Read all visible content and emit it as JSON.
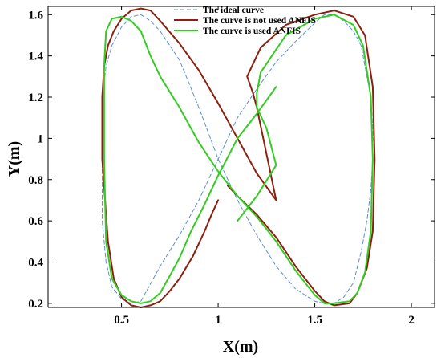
{
  "chart_data": {
    "type": "line",
    "xlabel": "X(m)",
    "ylabel": "Y(m)",
    "xlim": [
      0.12,
      2.12
    ],
    "ylim": [
      0.18,
      1.64
    ],
    "xticks": [
      0.5,
      1,
      1.5,
      2
    ],
    "xtick_labels": [
      "0.5",
      "1",
      "1.5",
      "2"
    ],
    "yticks": [
      0.2,
      0.4,
      0.6,
      0.8,
      1.0,
      1.2,
      1.4,
      1.6
    ],
    "ytick_labels": [
      "0.2",
      "0.4",
      "0.6",
      "0.8",
      "1",
      "1.2",
      "1.4",
      "1.6"
    ],
    "grid": false,
    "legend_position": "top-center",
    "series": [
      {
        "name": "The ideal curve",
        "color": "#5b8fd1",
        "style": "dashed",
        "x": [
          1.0,
          1.1,
          1.2,
          1.3,
          1.4,
          1.5,
          1.55,
          1.6,
          1.65,
          1.7,
          1.74,
          1.77,
          1.79,
          1.8,
          1.8,
          1.79,
          1.77,
          1.74,
          1.7,
          1.65,
          1.6,
          1.55,
          1.5,
          1.4,
          1.3,
          1.2,
          1.1,
          1.0,
          0.9,
          0.8,
          0.7,
          0.6,
          0.55,
          0.5,
          0.45,
          0.42,
          0.4,
          0.4,
          0.4,
          0.42,
          0.45,
          0.5,
          0.55,
          0.6,
          0.65,
          0.7,
          0.8,
          0.9,
          1.0
        ],
        "y": [
          0.9,
          0.7,
          0.53,
          0.38,
          0.27,
          0.21,
          0.2,
          0.2,
          0.23,
          0.3,
          0.45,
          0.6,
          0.75,
          0.9,
          1.05,
          1.2,
          1.3,
          1.45,
          1.52,
          1.57,
          1.6,
          1.6,
          1.56,
          1.47,
          1.37,
          1.24,
          1.1,
          0.9,
          0.7,
          0.53,
          0.38,
          0.21,
          0.2,
          0.22,
          0.28,
          0.4,
          0.6,
          0.9,
          1.2,
          1.35,
          1.45,
          1.54,
          1.59,
          1.6,
          1.57,
          1.52,
          1.38,
          1.15,
          0.9
        ]
      },
      {
        "name": "The curve is not used ANFIS",
        "color": "#8b2010",
        "style": "solid",
        "x": [
          1.0,
          0.97,
          0.93,
          0.87,
          0.8,
          0.75,
          0.7,
          0.65,
          0.6,
          0.55,
          0.5,
          0.46,
          0.43,
          0.4,
          0.4,
          0.41,
          0.43,
          0.46,
          0.5,
          0.55,
          0.6,
          0.65,
          0.7,
          0.8,
          0.9,
          1.0,
          1.1,
          1.2,
          1.3,
          1.2,
          1.18,
          1.15,
          1.22,
          1.35,
          1.5,
          1.6,
          1.7,
          1.76,
          1.8,
          1.81,
          1.8,
          1.77,
          1.72,
          1.68,
          1.6,
          1.55,
          1.5,
          1.45,
          1.4,
          1.3,
          1.2,
          1.1,
          1.05
        ],
        "y": [
          0.7,
          0.64,
          0.55,
          0.43,
          0.32,
          0.26,
          0.21,
          0.19,
          0.18,
          0.19,
          0.23,
          0.32,
          0.5,
          0.9,
          1.2,
          1.35,
          1.45,
          1.52,
          1.58,
          1.62,
          1.63,
          1.62,
          1.57,
          1.46,
          1.33,
          1.17,
          1.0,
          0.83,
          0.7,
          1.15,
          1.22,
          1.3,
          1.44,
          1.55,
          1.6,
          1.62,
          1.59,
          1.5,
          1.25,
          0.9,
          0.55,
          0.37,
          0.25,
          0.2,
          0.19,
          0.21,
          0.26,
          0.32,
          0.38,
          0.52,
          0.63,
          0.72,
          0.77
        ]
      },
      {
        "name": "The curve is used ANFIS",
        "color": "#33cc22",
        "style": "solid",
        "x": [
          1.1,
          1.2,
          1.3,
          1.25,
          1.2,
          1.2,
          1.22,
          1.35,
          1.5,
          1.6,
          1.7,
          1.75,
          1.79,
          1.8,
          1.79,
          1.76,
          1.72,
          1.68,
          1.6,
          1.55,
          1.5,
          1.45,
          1.4,
          1.3,
          1.2,
          1.1,
          1.0,
          0.9,
          0.8,
          0.7,
          0.65,
          0.6,
          0.55,
          0.5,
          0.45,
          0.42,
          0.41,
          0.41,
          0.42,
          0.45,
          0.5,
          0.55,
          0.6,
          0.65,
          0.7,
          0.76,
          0.8,
          0.86,
          0.93,
          1.0,
          1.1,
          1.2,
          1.3
        ],
        "y": [
          0.6,
          0.72,
          0.87,
          1.05,
          1.15,
          1.22,
          1.32,
          1.5,
          1.58,
          1.6,
          1.55,
          1.45,
          1.2,
          0.9,
          0.55,
          0.35,
          0.25,
          0.21,
          0.2,
          0.2,
          0.24,
          0.3,
          0.36,
          0.5,
          0.62,
          0.72,
          0.84,
          0.98,
          1.15,
          1.3,
          1.4,
          1.52,
          1.57,
          1.59,
          1.58,
          1.52,
          1.35,
          0.9,
          0.5,
          0.32,
          0.24,
          0.21,
          0.2,
          0.21,
          0.25,
          0.35,
          0.42,
          0.55,
          0.68,
          0.82,
          1.0,
          1.12,
          1.25
        ]
      }
    ]
  },
  "colors": {
    "axis": "#000000",
    "background": "#ffffff"
  }
}
